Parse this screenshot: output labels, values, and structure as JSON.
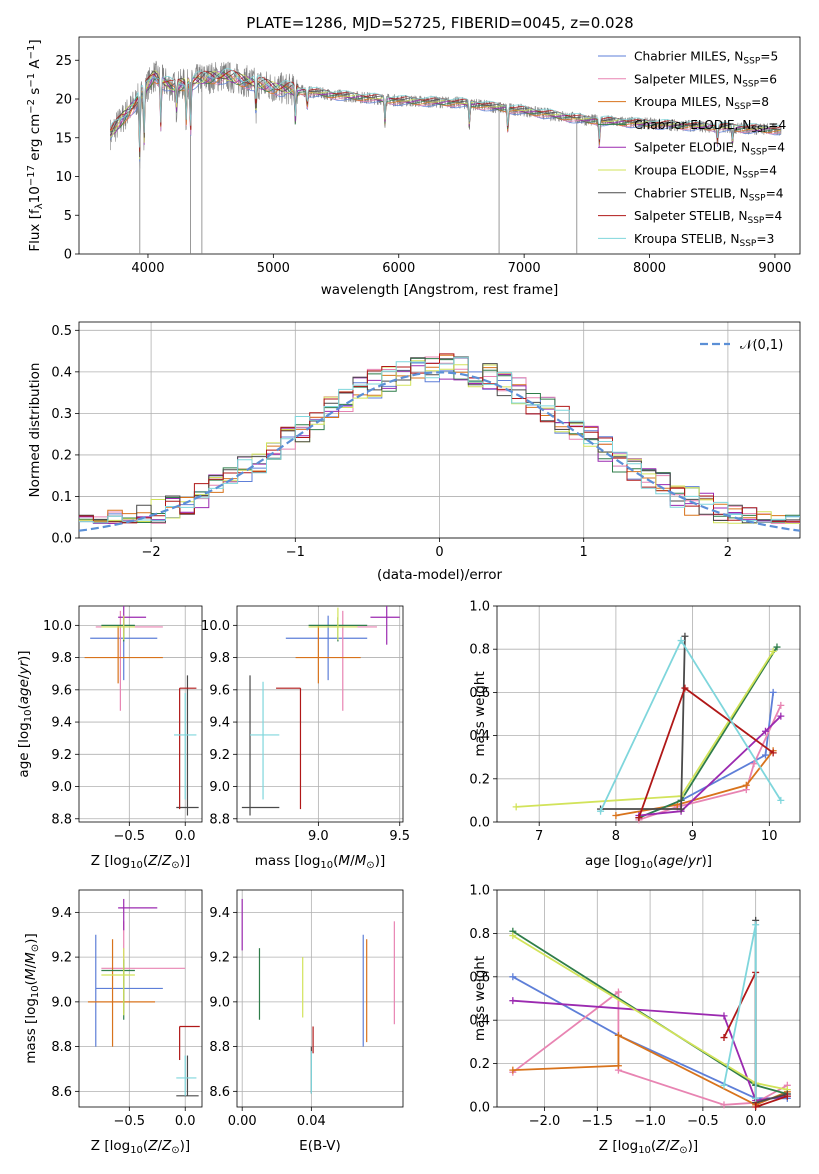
{
  "figure_title": "PLATE=1286, MJD=52725, FIBERID=0045, z=0.028",
  "colors": {
    "Chabrier MILES": "#5e7fd8",
    "Salpeter MILES": "#e884b2",
    "Kroupa MILES": "#d8731c",
    "Chabrier ELODIE": "#2f7d4a",
    "Salpeter ELODIE": "#9b2ab0",
    "Kroupa ELODIE": "#d2e35a",
    "Chabrier STELIB": "#4a4a4a",
    "Salpeter STELIB": "#b01818",
    "Kroupa STELIB": "#7fd6dc",
    "Gaussian": "#5b8fd6",
    "Spectrum": "#808080"
  },
  "chart_data": [
    {
      "id": "spectrum",
      "type": "line",
      "xlabel": "wavelength [Angstrom, rest frame]",
      "ylabel": "Flux [f_λ 10^-17 erg cm^-2 s^-1 A^-1]",
      "xlim": [
        3450,
        9200
      ],
      "ylim": [
        0,
        28
      ],
      "xticks": [
        4000,
        5000,
        6000,
        7000,
        8000,
        9000
      ],
      "yticks": [
        0,
        5,
        10,
        15,
        20,
        25
      ],
      "x_range_data": [
        3700,
        9050
      ],
      "legend": [
        {
          "name": "Chabrier MILES",
          "nssp": "5"
        },
        {
          "name": "Salpeter MILES",
          "nssp": "6"
        },
        {
          "name": "Kroupa MILES",
          "nssp": "8"
        },
        {
          "name": "Chabrier ELODIE",
          "nssp": "4"
        },
        {
          "name": "Salpeter ELODIE",
          "nssp": "4"
        },
        {
          "name": "Kroupa ELODIE",
          "nssp": "4"
        },
        {
          "name": "Chabrier STELIB",
          "nssp": "4"
        },
        {
          "name": "Salpeter STELIB",
          "nssp": "4"
        },
        {
          "name": "Kroupa STELIB",
          "nssp": "3"
        }
      ],
      "continuum": [
        [
          3700,
          15.5
        ],
        [
          3900,
          19.5
        ],
        [
          4050,
          23
        ],
        [
          4200,
          21.5
        ],
        [
          4400,
          22.5
        ],
        [
          4600,
          23
        ],
        [
          5000,
          21.5
        ],
        [
          5500,
          20.5
        ],
        [
          6000,
          19.8
        ],
        [
          6500,
          19.5
        ],
        [
          7000,
          18.5
        ],
        [
          7500,
          17.3
        ],
        [
          8000,
          16.8
        ],
        [
          8500,
          16.4
        ],
        [
          9050,
          16.0
        ]
      ],
      "absorption": [
        [
          3934,
          8
        ],
        [
          3969,
          7
        ],
        [
          4102,
          6
        ],
        [
          4227,
          3
        ],
        [
          4305,
          5
        ],
        [
          4340,
          7
        ],
        [
          4861,
          4
        ],
        [
          5175,
          4
        ],
        [
          5270,
          2
        ],
        [
          5890,
          3
        ],
        [
          6563,
          3
        ],
        [
          6870,
          3
        ],
        [
          7600,
          3
        ],
        [
          8542,
          2
        ],
        [
          8662,
          2
        ]
      ],
      "glitches": [
        [
          3935,
          0
        ],
        [
          4340,
          0
        ],
        [
          4430,
          0
        ],
        [
          6800,
          0
        ],
        [
          7420,
          0
        ]
      ]
    },
    {
      "id": "residuals",
      "type": "histogram",
      "xlabel": "(data-model)/error",
      "ylabel": "Normed distribution",
      "xlim": [
        -2.5,
        2.5
      ],
      "ylim": [
        0,
        0.52
      ],
      "xticks": [
        -2,
        -1,
        0,
        1,
        2
      ],
      "yticks": [
        0.0,
        0.1,
        0.2,
        0.3,
        0.4,
        0.5
      ],
      "legend": "top-right",
      "gaussian_label": "𝒩(0,1)",
      "bin_width": 0.1,
      "bin_start": -2.5
    },
    {
      "id": "age_vs_Z",
      "type": "errorbar",
      "xlabel": "Z [log10(Z/Z⊙)]",
      "ylabel": "age [log10(age/yr)]",
      "xlim": [
        -0.95,
        0.15
      ],
      "ylim": [
        8.78,
        10.12
      ],
      "xticks": [
        -0.5,
        0.0
      ],
      "yticks": [
        8.8,
        9.0,
        9.2,
        9.4,
        9.6,
        9.8,
        10.0
      ],
      "points": [
        {
          "model": "Chabrier MILES",
          "x": -0.55,
          "xerr": [
            0.3,
            0.3
          ],
          "y": 9.92,
          "yerr": [
            0.26,
            0.14
          ]
        },
        {
          "model": "Salpeter MILES",
          "x": -0.58,
          "xerr": [
            0.22,
            0.38
          ],
          "y": 9.99,
          "yerr": [
            0.52,
            0.1
          ]
        },
        {
          "model": "Kroupa MILES",
          "x": -0.6,
          "xerr": [
            0.3,
            0.4
          ],
          "y": 9.8,
          "yerr": [
            0.16,
            0.2
          ]
        },
        {
          "model": "Chabrier ELODIE",
          "x": -0.55,
          "xerr": [
            0.2,
            0.1
          ],
          "y": 10.0,
          "yerr": [
            0.1,
            0.05
          ]
        },
        {
          "model": "Salpeter ELODIE",
          "x": -0.55,
          "xerr": [
            0.05,
            0.2
          ],
          "y": 10.05,
          "yerr": [
            0.1,
            0.07
          ]
        },
        {
          "model": "Kroupa ELODIE",
          "x": -0.55,
          "xerr": [
            0.2,
            0.1
          ],
          "y": 9.99,
          "yerr": [
            0.08,
            0.07
          ]
        },
        {
          "model": "Chabrier STELIB",
          "x": 0.02,
          "xerr": [
            0.1,
            0.1
          ],
          "y": 8.87,
          "yerr": [
            0.05,
            0.82
          ]
        },
        {
          "model": "Salpeter STELIB",
          "x": -0.05,
          "xerr": [
            0.0,
            0.15
          ],
          "y": 9.61,
          "yerr": [
            0.75,
            0.0
          ]
        },
        {
          "model": "Kroupa STELIB",
          "x": 0.0,
          "xerr": [
            0.1,
            0.1
          ],
          "y": 9.32,
          "yerr": [
            0.4,
            0.26
          ]
        }
      ]
    },
    {
      "id": "age_vs_mass",
      "type": "errorbar",
      "xlabel": "mass [log10(M/M⊙)]",
      "ylabel": "",
      "xlim": [
        8.5,
        9.52
      ],
      "ylim": [
        8.78,
        10.12
      ],
      "xticks": [
        9.0,
        9.5
      ],
      "yticks": [
        8.8,
        9.0,
        9.2,
        9.4,
        9.6,
        9.8,
        10.0
      ],
      "points": [
        {
          "model": "Chabrier MILES",
          "x": 9.06,
          "xerr": [
            0.26,
            0.24
          ],
          "y": 9.92,
          "yerr": [
            0.26,
            0.14
          ]
        },
        {
          "model": "Salpeter MILES",
          "x": 9.15,
          "xerr": [
            0.2,
            0.21
          ],
          "y": 9.99,
          "yerr": [
            0.52,
            0.1
          ]
        },
        {
          "model": "Kroupa MILES",
          "x": 9.0,
          "xerr": [
            0.14,
            0.26
          ],
          "y": 9.8,
          "yerr": [
            0.16,
            0.2
          ]
        },
        {
          "model": "Chabrier ELODIE",
          "x": 9.12,
          "xerr": [
            0.18,
            0.18
          ],
          "y": 10.0,
          "yerr": [
            0.1,
            0.05
          ]
        },
        {
          "model": "Salpeter ELODIE",
          "x": 9.42,
          "xerr": [
            0.1,
            0.08
          ],
          "y": 10.05,
          "yerr": [
            0.17,
            0.07
          ]
        },
        {
          "model": "Kroupa ELODIE",
          "x": 9.12,
          "xerr": [
            0.18,
            0.12
          ],
          "y": 9.99,
          "yerr": [
            0.08,
            0.12
          ]
        },
        {
          "model": "Chabrier STELIB",
          "x": 8.58,
          "xerr": [
            0.05,
            0.18
          ],
          "y": 8.87,
          "yerr": [
            0.05,
            0.82
          ]
        },
        {
          "model": "Salpeter STELIB",
          "x": 8.89,
          "xerr": [
            0.15,
            0.0
          ],
          "y": 9.61,
          "yerr": [
            0.75,
            0.0
          ]
        },
        {
          "model": "Kroupa STELIB",
          "x": 8.66,
          "xerr": [
            0.08,
            0.1
          ],
          "y": 9.32,
          "yerr": [
            0.4,
            0.33
          ]
        }
      ]
    },
    {
      "id": "weight_vs_age",
      "type": "line",
      "xlabel": "age [log10(age/yr)]",
      "ylabel": "mass weight",
      "xlim": [
        6.45,
        10.4
      ],
      "ylim": [
        0,
        1.0
      ],
      "xticks": [
        7,
        8,
        9,
        10
      ],
      "yticks": [
        0.0,
        0.2,
        0.4,
        0.6,
        0.8,
        1.0
      ],
      "series": [
        {
          "name": "Chabrier MILES",
          "x": [
            8.3,
            8.85,
            9.95,
            10.05
          ],
          "y": [
            0.02,
            0.1,
            0.31,
            0.6
          ]
        },
        {
          "name": "Salpeter MILES",
          "x": [
            8.3,
            8.8,
            9.7,
            9.8,
            10.15
          ],
          "y": [
            0.01,
            0.07,
            0.15,
            0.27,
            0.54
          ]
        },
        {
          "name": "Kroupa MILES",
          "x": [
            8.0,
            8.8,
            9.7,
            10.05
          ],
          "y": [
            0.03,
            0.08,
            0.17,
            0.33
          ]
        },
        {
          "name": "Chabrier ELODIE",
          "x": [
            8.3,
            8.85,
            10.1
          ],
          "y": [
            0.02,
            0.1,
            0.81
          ]
        },
        {
          "name": "Salpeter ELODIE",
          "x": [
            8.3,
            8.85,
            9.95,
            10.15
          ],
          "y": [
            0.03,
            0.05,
            0.42,
            0.49
          ]
        },
        {
          "name": "Kroupa ELODIE",
          "x": [
            6.7,
            8.85,
            10.05
          ],
          "y": [
            0.07,
            0.12,
            0.79
          ]
        },
        {
          "name": "Chabrier STELIB",
          "x": [
            7.8,
            8.85,
            8.9
          ],
          "y": [
            0.06,
            0.06,
            0.86
          ]
        },
        {
          "name": "Salpeter STELIB",
          "x": [
            8.3,
            8.9,
            10.05
          ],
          "y": [
            0.02,
            0.62,
            0.32
          ]
        },
        {
          "name": "Kroupa STELIB",
          "x": [
            7.8,
            8.85,
            10.15
          ],
          "y": [
            0.05,
            0.84,
            0.1
          ]
        }
      ]
    },
    {
      "id": "mass_vs_Z",
      "type": "errorbar",
      "xlabel": "Z [log10(Z/Z⊙)]",
      "ylabel": "mass [log10(M/M⊙)]",
      "xlim": [
        -0.95,
        0.15
      ],
      "ylim": [
        8.53,
        9.5
      ],
      "xticks": [
        -0.5,
        0.0
      ],
      "yticks": [
        8.6,
        8.8,
        9.0,
        9.2,
        9.4
      ],
      "points": [
        {
          "model": "Chabrier MILES",
          "x": -0.8,
          "xerr": [
            0.0,
            0.6
          ],
          "y": 9.06,
          "yerr": [
            0.26,
            0.24
          ]
        },
        {
          "model": "Salpeter MILES",
          "x": -0.55,
          "xerr": [
            0.2,
            0.55
          ],
          "y": 9.15,
          "yerr": [
            0.2,
            0.21
          ]
        },
        {
          "model": "Kroupa MILES",
          "x": -0.65,
          "xerr": [
            0.22,
            0.38
          ],
          "y": 9.0,
          "yerr": [
            0.2,
            0.28
          ]
        },
        {
          "model": "Chabrier ELODIE",
          "x": -0.55,
          "xerr": [
            0.2,
            0.1
          ],
          "y": 9.14,
          "yerr": [
            0.22,
            0.05
          ]
        },
        {
          "model": "Salpeter ELODIE",
          "x": -0.55,
          "xerr": [
            0.05,
            0.3
          ],
          "y": 9.42,
          "yerr": [
            0.1,
            0.04
          ]
        },
        {
          "model": "Kroupa ELODIE",
          "x": -0.55,
          "xerr": [
            0.2,
            0.1
          ],
          "y": 9.12,
          "yerr": [
            0.18,
            0.12
          ]
        },
        {
          "model": "Chabrier STELIB",
          "x": 0.02,
          "xerr": [
            0.1,
            0.1
          ],
          "y": 8.58,
          "yerr": [
            0.0,
            0.18
          ]
        },
        {
          "model": "Salpeter STELIB",
          "x": -0.05,
          "xerr": [
            0.0,
            0.18
          ],
          "y": 8.89,
          "yerr": [
            0.15,
            0.0
          ]
        },
        {
          "model": "Kroupa STELIB",
          "x": 0.0,
          "xerr": [
            0.08,
            0.1
          ],
          "y": 8.66,
          "yerr": [
            0.08,
            0.1
          ]
        }
      ]
    },
    {
      "id": "mass_vs_ebv",
      "type": "errorbar",
      "xlabel": "E(B-V)",
      "ylabel": "",
      "xlim": [
        -0.003,
        0.093
      ],
      "ylim": [
        8.53,
        9.5
      ],
      "xticks": [
        0.0,
        0.04
      ],
      "xticklabels": [
        "0.00",
        "0.04"
      ],
      "yticks": [
        8.6,
        8.8,
        9.0,
        9.2,
        9.4
      ],
      "points": [
        {
          "model": "Chabrier MILES",
          "x": 0.07,
          "xerr": [
            0,
            0
          ],
          "y": 9.06,
          "yerr": [
            0.26,
            0.24
          ]
        },
        {
          "model": "Salpeter MILES",
          "x": 0.088,
          "xerr": [
            0,
            0
          ],
          "y": 9.15,
          "yerr": [
            0.25,
            0.21
          ]
        },
        {
          "model": "Kroupa MILES",
          "x": 0.072,
          "xerr": [
            0,
            0
          ],
          "y": 9.0,
          "yerr": [
            0.18,
            0.28
          ]
        },
        {
          "model": "Chabrier ELODIE",
          "x": 0.01,
          "xerr": [
            0,
            0
          ],
          "y": 9.14,
          "yerr": [
            0.22,
            0.1
          ]
        },
        {
          "model": "Salpeter ELODIE",
          "x": 0.0,
          "xerr": [
            0,
            0
          ],
          "y": 9.42,
          "yerr": [
            0.19,
            0.04
          ]
        },
        {
          "model": "Kroupa ELODIE",
          "x": 0.035,
          "xerr": [
            0,
            0
          ],
          "y": 9.12,
          "yerr": [
            0.19,
            0.08
          ]
        },
        {
          "model": "Chabrier STELIB",
          "x": 0.04,
          "xerr": [
            0,
            0
          ],
          "y": 8.7,
          "yerr": [
            0.11,
            0.1
          ]
        },
        {
          "model": "Salpeter STELIB",
          "x": 0.041,
          "xerr": [
            0,
            0
          ],
          "y": 8.82,
          "yerr": [
            0.05,
            0.07
          ]
        },
        {
          "model": "Kroupa STELIB",
          "x": 0.04,
          "xerr": [
            0,
            0
          ],
          "y": 8.66,
          "yerr": [
            0.07,
            0.12
          ]
        }
      ]
    },
    {
      "id": "weight_vs_Z",
      "type": "line",
      "xlabel": "Z [log10(Z/Z⊙)]",
      "ylabel": "mass weight",
      "xlim": [
        -2.45,
        0.42
      ],
      "ylim": [
        0,
        1.0
      ],
      "xticks": [
        -2.0,
        -1.5,
        -1.0,
        -0.5,
        0.0
      ],
      "xticklabels": [
        "−2.0",
        "−1.5",
        "−1.0",
        "−0.5",
        "0.0"
      ],
      "yticks": [
        0.0,
        0.2,
        0.4,
        0.6,
        0.8,
        1.0
      ],
      "series": [
        {
          "name": "Chabrier MILES",
          "x": [
            -2.3,
            -1.3,
            0.0,
            0.3
          ],
          "y": [
            0.6,
            0.33,
            0.04,
            0.04
          ]
        },
        {
          "name": "Salpeter MILES",
          "x": [
            -2.3,
            -1.3,
            -1.3,
            -0.3,
            0.0,
            0.3
          ],
          "y": [
            0.16,
            0.53,
            0.17,
            0.01,
            0.02,
            0.1
          ]
        },
        {
          "name": "Kroupa MILES",
          "x": [
            -2.3,
            -1.3,
            -1.3,
            0.0,
            0.3
          ],
          "y": [
            0.17,
            0.19,
            0.33,
            0.01,
            0.07
          ]
        },
        {
          "name": "Chabrier ELODIE",
          "x": [
            -2.3,
            0.0,
            0.3
          ],
          "y": [
            0.81,
            0.1,
            0.06
          ]
        },
        {
          "name": "Salpeter ELODIE",
          "x": [
            -2.3,
            -0.3,
            0.0,
            0.3
          ],
          "y": [
            0.49,
            0.42,
            0.03,
            0.05
          ]
        },
        {
          "name": "Kroupa ELODIE",
          "x": [
            -2.3,
            0.0,
            0.3
          ],
          "y": [
            0.79,
            0.11,
            0.08
          ]
        },
        {
          "name": "Chabrier STELIB",
          "x": [
            0.0,
            0.0,
            0.3
          ],
          "y": [
            0.86,
            0.02,
            0.06
          ]
        },
        {
          "name": "Salpeter STELIB",
          "x": [
            -0.3,
            0.0,
            0.0,
            0.3
          ],
          "y": [
            0.32,
            0.62,
            0.0,
            0.05
          ]
        },
        {
          "name": "Kroupa STELIB",
          "x": [
            -0.3,
            0.0,
            0.0
          ],
          "y": [
            0.1,
            0.84,
            0.04
          ]
        }
      ]
    }
  ]
}
